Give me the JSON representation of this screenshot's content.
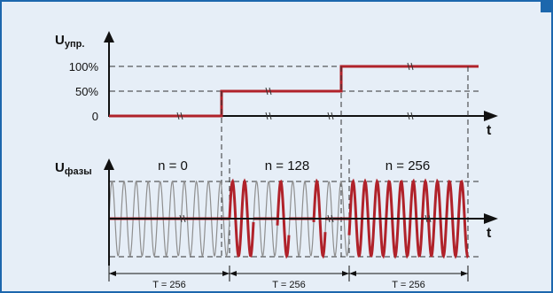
{
  "top_axis": {
    "label_main": "U",
    "label_sub": "упр.",
    "ticks": [
      "100%",
      "50%",
      "0"
    ],
    "x_label": "t"
  },
  "bottom_axis": {
    "label_main": "U",
    "label_sub": "фазы",
    "x_label": "t"
  },
  "sections": [
    {
      "n_label": "n = 0",
      "period_label": "T = 256"
    },
    {
      "n_label": "n = 128",
      "period_label": "T = 256"
    },
    {
      "n_label": "n = 256",
      "period_label": "T = 256"
    }
  ],
  "control_levels_percent": [
    0,
    50,
    100
  ],
  "colors": {
    "frame": "#1c67ad",
    "background": "#e6eef7",
    "signal": "#b0222a",
    "sine_gray": "#8f8f8f",
    "axis": "#111111"
  }
}
